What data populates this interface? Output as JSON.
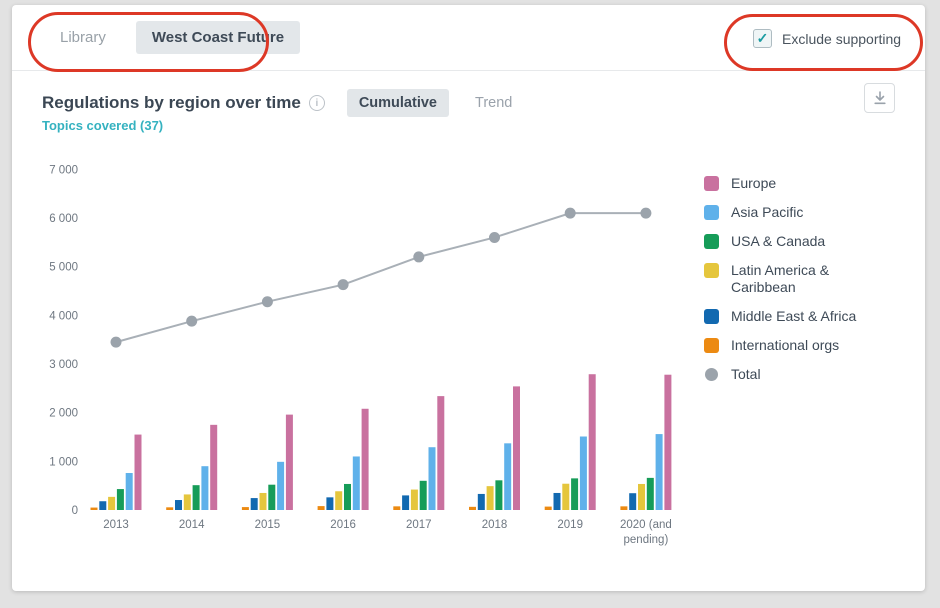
{
  "topbar": {
    "tabs": [
      {
        "label": "Library",
        "active": false
      },
      {
        "label": "West Coast Future",
        "active": true
      }
    ],
    "checkbox": {
      "label": "Exclude supporting",
      "checked": true
    }
  },
  "header": {
    "title": "Regulations by region over time",
    "info_icon": "info-circle",
    "view_toggle": [
      {
        "label": "Cumulative",
        "active": true
      },
      {
        "label": "Trend",
        "active": false
      }
    ],
    "topics_link": "Topics covered (37)",
    "download_icon": "download-arrow"
  },
  "colors": {
    "annotation_red": "#dd3826",
    "link_teal": "#35b2c0",
    "checkbox_check": "#1a9ba1",
    "active_pill_bg": "#e3e7ea",
    "title_text": "#3b4754",
    "muted_text": "#9aa2ab"
  },
  "chart_data": {
    "type": "bar",
    "title": "Regulations by region over time",
    "xlabel": "",
    "ylabel": "",
    "ylim": [
      0,
      7000
    ],
    "ytick_step": 1000,
    "ytick_labels": [
      "0",
      "1 000",
      "2 000",
      "3 000",
      "4 000",
      "5 000",
      "6 000",
      "7 000"
    ],
    "grid": false,
    "legend_position": "right",
    "bar_draw_order": "reversed",
    "categories": [
      "2013",
      "2014",
      "2015",
      "2016",
      "2017",
      "2018",
      "2019",
      "2020 (and pending)"
    ],
    "series": [
      {
        "name": "Europe",
        "type": "bar",
        "color": "#c9719f",
        "values": [
          1550,
          1750,
          1960,
          2080,
          2340,
          2540,
          2790,
          2780
        ]
      },
      {
        "name": "Asia Pacific",
        "type": "bar",
        "color": "#5fb1ea",
        "values": [
          760,
          900,
          990,
          1100,
          1290,
          1370,
          1510,
          1560
        ]
      },
      {
        "name": "USA & Canada",
        "type": "bar",
        "color": "#169c58",
        "values": [
          430,
          510,
          520,
          535,
          600,
          610,
          650,
          660
        ]
      },
      {
        "name": "Latin America & Caribbean",
        "type": "bar",
        "color": "#e5c63d",
        "values": [
          270,
          320,
          350,
          385,
          420,
          490,
          540,
          535
        ]
      },
      {
        "name": "Middle East & Africa",
        "type": "bar",
        "color": "#1269b0",
        "values": [
          180,
          205,
          245,
          260,
          300,
          330,
          350,
          345
        ]
      },
      {
        "name": "International orgs",
        "type": "bar",
        "color": "#ec8a12",
        "values": [
          50,
          55,
          60,
          80,
          75,
          65,
          70,
          75
        ]
      },
      {
        "name": "Total",
        "type": "line",
        "color": "#a9b0b7",
        "values": [
          3450,
          3880,
          4280,
          4630,
          5200,
          5600,
          6100,
          6100
        ]
      }
    ]
  }
}
